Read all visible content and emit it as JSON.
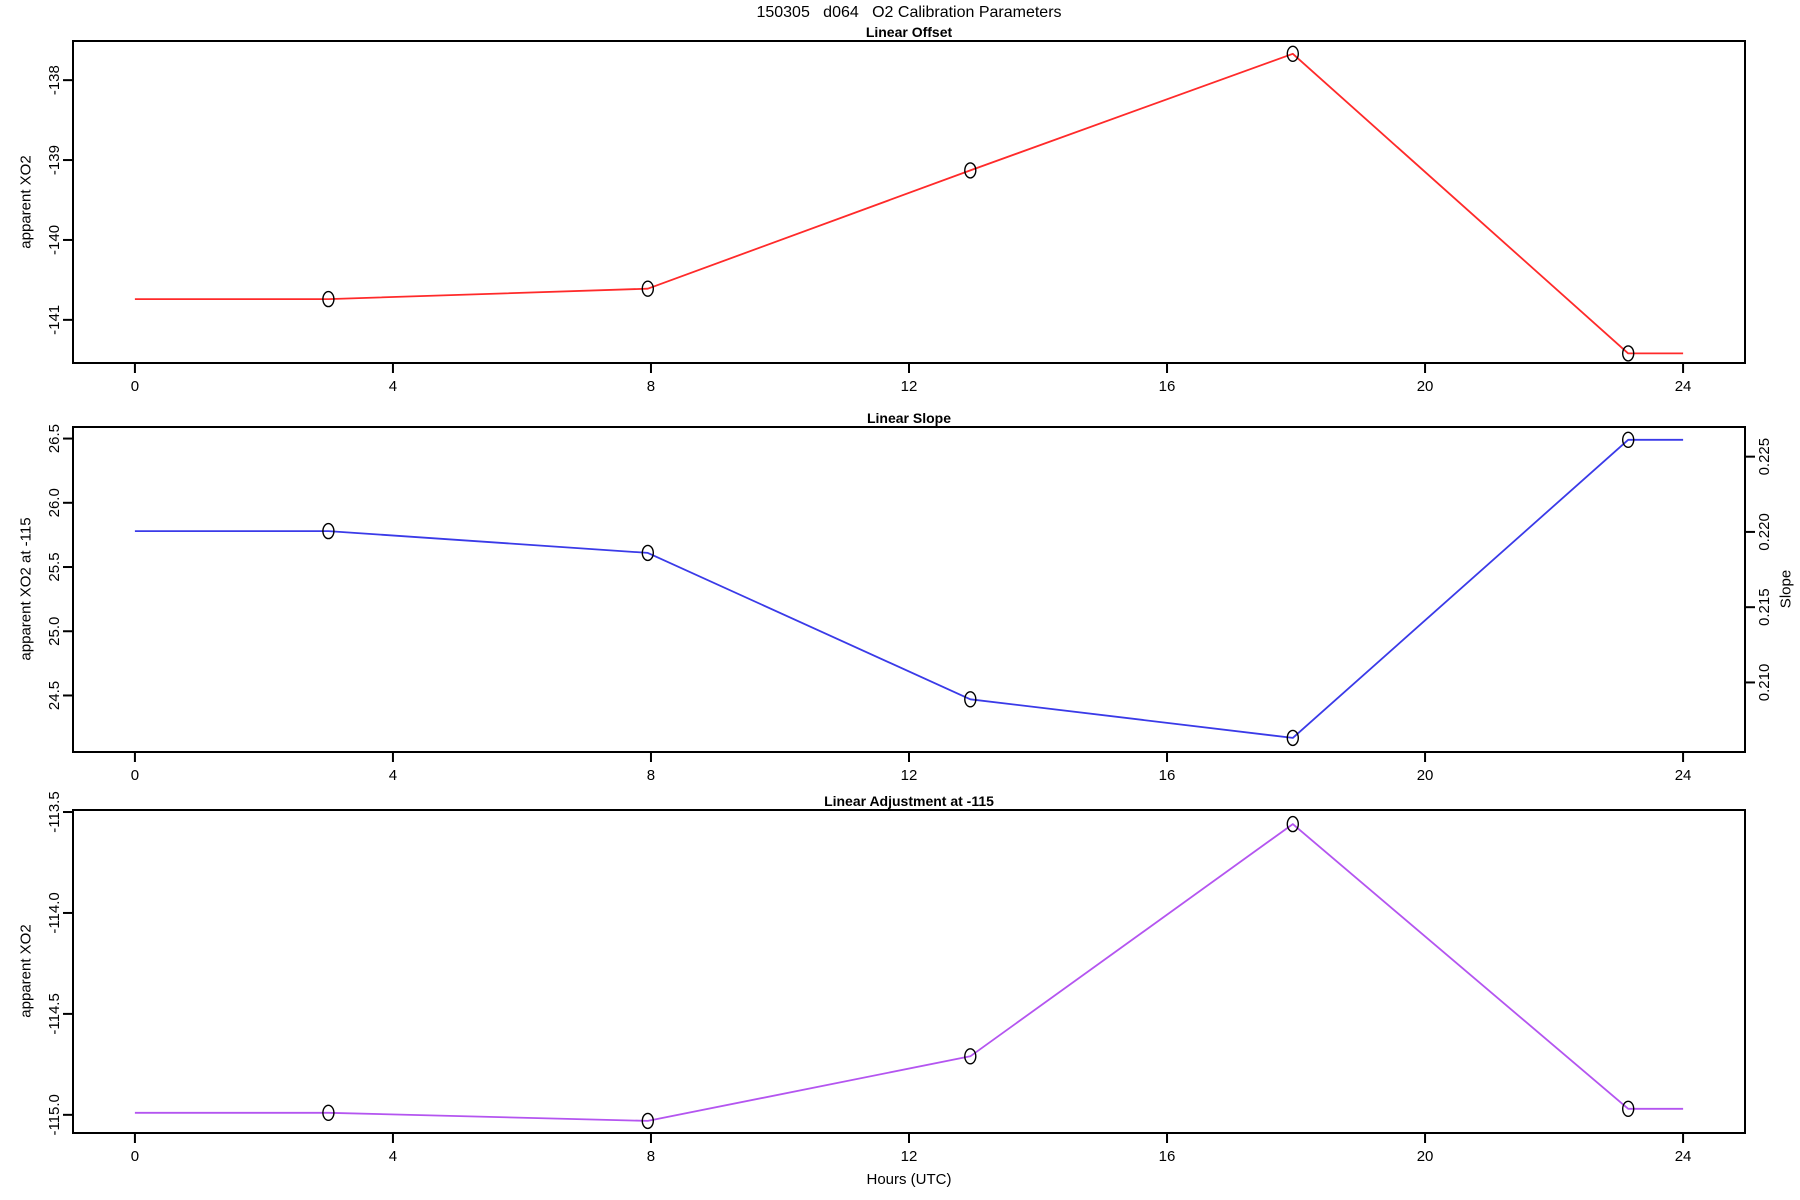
{
  "page": {
    "background": "#ffffff"
  },
  "header": {
    "title": "150305   d064   O2 Calibration Parameters"
  },
  "xaxis": {
    "label": "Hours (UTC)"
  },
  "chart_data": [
    {
      "type": "line",
      "title": "Linear Offset",
      "ylabel": "apparent XO2",
      "line_color": "#ff2a2a",
      "marker_color": "#000000",
      "x": [
        0,
        3.0,
        7.95,
        12.95,
        17.95,
        23.15,
        24
      ],
      "y": [
        -140.74,
        -140.74,
        -140.61,
        -139.13,
        -137.67,
        -141.42,
        -141.42
      ],
      "marker_indices": [
        1,
        2,
        3,
        4,
        5
      ],
      "xlim": [
        -0.96,
        24.96
      ],
      "ylim": [
        -141.54,
        -137.51
      ],
      "x_ticks": [
        0,
        4,
        8,
        12,
        16,
        20,
        24
      ],
      "x_tick_labels": [
        "0",
        "4",
        "8",
        "12",
        "16",
        "20",
        "24"
      ],
      "y_ticks": [
        -138,
        -139,
        -140,
        -141
      ],
      "y_tick_labels": [
        "-138",
        "-139",
        "-140",
        "-141"
      ],
      "grid": false,
      "legend": "none"
    },
    {
      "type": "line",
      "title": "Linear Slope",
      "ylabel": "apparent XO2 at -115",
      "ylabel_right": "Slope",
      "line_color": "#3a3ae8",
      "marker_color": "#000000",
      "x": [
        0,
        3.0,
        7.95,
        12.95,
        17.95,
        23.15,
        24
      ],
      "y": [
        25.78,
        25.78,
        25.61,
        24.47,
        24.17,
        26.49,
        26.49
      ],
      "marker_indices": [
        1,
        2,
        3,
        4,
        5
      ],
      "xlim": [
        -0.96,
        24.96
      ],
      "ylim": [
        24.06,
        26.59
      ],
      "x_ticks": [
        0,
        4,
        8,
        12,
        16,
        20,
        24
      ],
      "x_tick_labels": [
        "0",
        "4",
        "8",
        "12",
        "16",
        "20",
        "24"
      ],
      "y_ticks": [
        26.5,
        26.0,
        25.5,
        25.0,
        24.5
      ],
      "y_tick_labels": [
        "26.5",
        "26.0",
        "25.5",
        "25.0",
        "24.5"
      ],
      "right_ticks": [
        0.225,
        0.22,
        0.215,
        0.21
      ],
      "right_tick_labels": [
        "0.225",
        "0.220",
        "0.215",
        "0.210"
      ],
      "right_ylim": [
        0.20538,
        0.22697
      ],
      "grid": false,
      "legend": "none"
    },
    {
      "type": "line",
      "title": "Linear Adjustment at -115",
      "ylabel": "apparent XO2",
      "line_color": "#b455f0",
      "marker_color": "#000000",
      "x": [
        0,
        3.0,
        7.95,
        12.95,
        17.95,
        23.15,
        24
      ],
      "y": [
        -114.99,
        -114.99,
        -115.03,
        -114.71,
        -113.56,
        -114.97,
        -114.97
      ],
      "marker_indices": [
        1,
        2,
        3,
        4,
        5
      ],
      "xlim": [
        -0.96,
        24.96
      ],
      "ylim": [
        -115.09,
        -113.49
      ],
      "x_ticks": [
        0,
        4,
        8,
        12,
        16,
        20,
        24
      ],
      "x_tick_labels": [
        "0",
        "4",
        "8",
        "12",
        "16",
        "20",
        "24"
      ],
      "y_ticks": [
        -113.5,
        -114.0,
        -114.5,
        -115.0
      ],
      "y_tick_labels": [
        "-113.5",
        "-114.0",
        "-114.5",
        "-115.0"
      ],
      "grid": false,
      "legend": "none"
    }
  ]
}
